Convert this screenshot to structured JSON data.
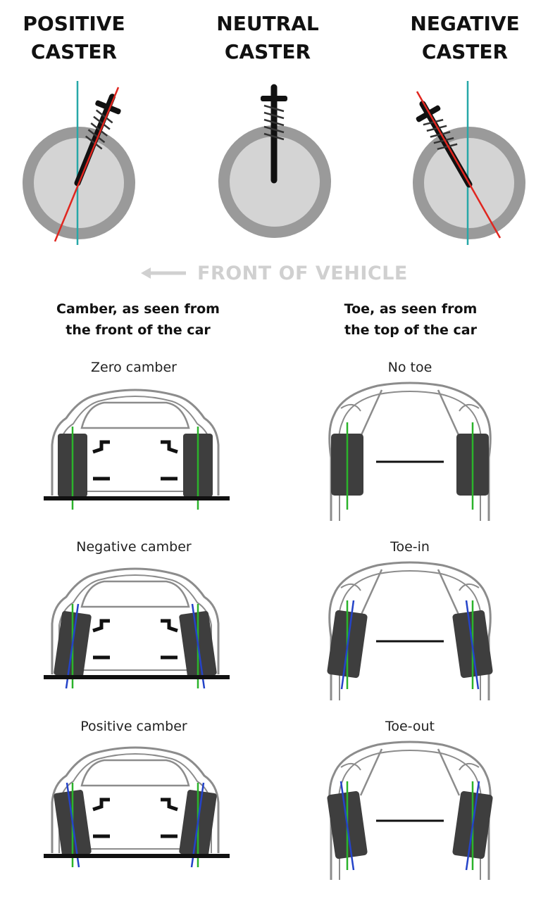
{
  "caster": {
    "positive": [
      "POSITIVE",
      "CASTER"
    ],
    "neutral": [
      "NEUTRAL",
      "CASTER"
    ],
    "negative": [
      "NEGATIVE",
      "CASTER"
    ],
    "front_label": "FRONT OF VEHICLE"
  },
  "camber": {
    "title": [
      "Camber, as seen from",
      "the front of the car"
    ],
    "zero": "Zero camber",
    "negative": "Negative camber",
    "positive": "Positive camber"
  },
  "toe": {
    "title": [
      "Toe, as seen from",
      "the top of the car"
    ],
    "none": "No toe",
    "in": "Toe-in",
    "out": "Toe-out"
  },
  "colors": {
    "tire": "#9a9a9a",
    "hub": "#d4d4d4",
    "strut": "#111111",
    "steering_axis": "#e0261f",
    "vertical_ref": "#27a8a8",
    "wheel_dark": "#3e3e3e",
    "green_line": "#2bb32b",
    "blue_line": "#2443c8",
    "body_outline": "#8c8c8c",
    "front_label": "#d0d0d0"
  },
  "icons": [
    "left-arrow-icon"
  ]
}
